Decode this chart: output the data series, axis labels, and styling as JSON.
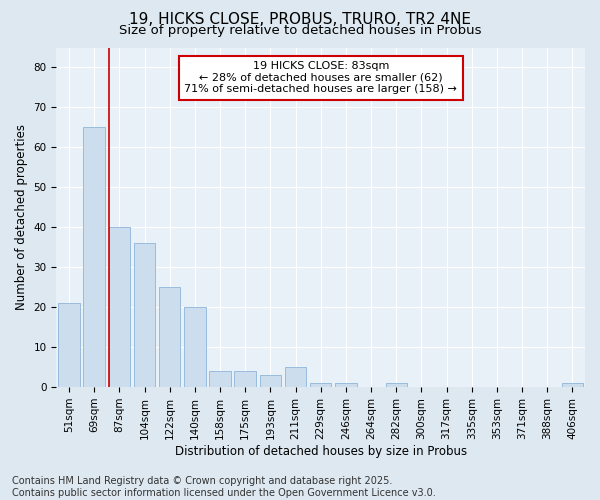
{
  "title1": "19, HICKS CLOSE, PROBUS, TRURO, TR2 4NE",
  "title2": "Size of property relative to detached houses in Probus",
  "xlabel": "Distribution of detached houses by size in Probus",
  "ylabel": "Number of detached properties",
  "categories": [
    "51sqm",
    "69sqm",
    "87sqm",
    "104sqm",
    "122sqm",
    "140sqm",
    "158sqm",
    "175sqm",
    "193sqm",
    "211sqm",
    "229sqm",
    "246sqm",
    "264sqm",
    "282sqm",
    "300sqm",
    "317sqm",
    "335sqm",
    "353sqm",
    "371sqm",
    "388sqm",
    "406sqm"
  ],
  "values": [
    21,
    65,
    40,
    36,
    25,
    20,
    4,
    4,
    3,
    5,
    1,
    1,
    0,
    1,
    0,
    0,
    0,
    0,
    0,
    0,
    1
  ],
  "bar_color": "#ccdded",
  "bar_edgecolor": "#99bbdd",
  "vline_bar_index": 2,
  "vline_color": "#cc0000",
  "annotation_text": "19 HICKS CLOSE: 83sqm\n← 28% of detached houses are smaller (62)\n71% of semi-detached houses are larger (158) →",
  "annotation_box_facecolor": "#ffffff",
  "annotation_box_edgecolor": "#cc0000",
  "ylim": [
    0,
    85
  ],
  "yticks": [
    0,
    10,
    20,
    30,
    40,
    50,
    60,
    70,
    80
  ],
  "bg_color": "#dde8f0",
  "plot_bg_color": "#e8f0f8",
  "grid_color": "#ffffff",
  "footer_text": "Contains HM Land Registry data © Crown copyright and database right 2025.\nContains public sector information licensed under the Open Government Licence v3.0.",
  "title_fontsize": 11,
  "subtitle_fontsize": 9.5,
  "axis_label_fontsize": 8.5,
  "tick_fontsize": 7.5,
  "annotation_fontsize": 8,
  "footer_fontsize": 7
}
